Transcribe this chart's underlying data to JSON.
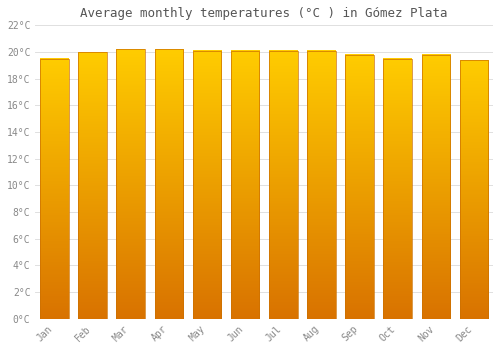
{
  "months": [
    "Jan",
    "Feb",
    "Mar",
    "Apr",
    "May",
    "Jun",
    "Jul",
    "Aug",
    "Sep",
    "Oct",
    "Nov",
    "Dec"
  ],
  "temperatures": [
    19.5,
    20.0,
    20.2,
    20.2,
    20.1,
    20.1,
    20.1,
    20.1,
    19.8,
    19.5,
    19.8,
    19.4
  ],
  "title": "Average monthly temperatures (°C ) in Gómez Plata",
  "ylim": [
    0,
    22
  ],
  "yticks": [
    0,
    2,
    4,
    6,
    8,
    10,
    12,
    14,
    16,
    18,
    20,
    22
  ],
  "ytick_labels": [
    "0°C",
    "2°C",
    "4°C",
    "6°C",
    "8°C",
    "10°C",
    "12°C",
    "14°C",
    "16°C",
    "18°C",
    "20°C",
    "22°C"
  ],
  "bar_color_top": "#FFB300",
  "bar_color_bottom": "#FF8C00",
  "bar_edge_color": "#CC7000",
  "background_color": "#FFFFFF",
  "grid_color": "#E0E0E0",
  "title_fontsize": 9,
  "tick_fontsize": 7,
  "font_family": "monospace",
  "title_color": "#555555",
  "tick_color": "#888888"
}
